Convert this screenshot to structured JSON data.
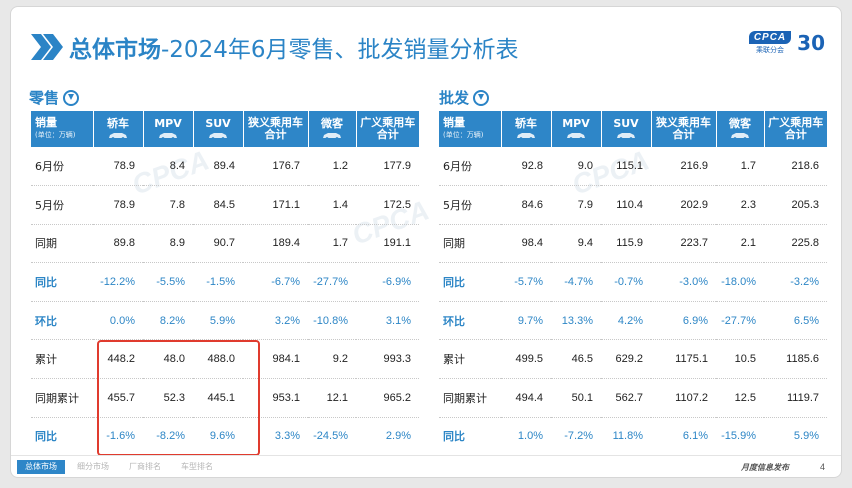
{
  "title": {
    "bold": "总体市场",
    "rest": "-2024年6月零售、批发销量分析表"
  },
  "logo": {
    "brand": "CPCA",
    "brand_sub": "乘联分会",
    "anniversary": "30"
  },
  "retail": {
    "section_label": "零售",
    "corner": {
      "main": "销量",
      "sub": "(单位：万辆)"
    },
    "columns": [
      "轿车",
      "MPV",
      "SUV",
      "狭义乘用车\n合计",
      "微客",
      "广义乘用车\n合计"
    ],
    "rows": [
      {
        "label": "6月份",
        "values": [
          "78.9",
          "8.4",
          "89.4",
          "176.7",
          "1.2",
          "177.9"
        ],
        "pct": false
      },
      {
        "label": "5月份",
        "values": [
          "78.9",
          "7.8",
          "84.5",
          "171.1",
          "1.4",
          "172.5"
        ],
        "pct": false
      },
      {
        "label": "同期",
        "values": [
          "89.8",
          "8.9",
          "90.7",
          "189.4",
          "1.7",
          "191.1"
        ],
        "pct": false
      },
      {
        "label": "同比",
        "values": [
          "-12.2%",
          "-5.5%",
          "-1.5%",
          "-6.7%",
          "-27.7%",
          "-6.9%"
        ],
        "pct": true
      },
      {
        "label": "环比",
        "values": [
          "0.0%",
          "8.2%",
          "5.9%",
          "3.2%",
          "-10.8%",
          "3.1%"
        ],
        "pct": true
      },
      {
        "label": "累计",
        "values": [
          "448.2",
          "48.0",
          "488.0",
          "984.1",
          "9.2",
          "993.3"
        ],
        "pct": false
      },
      {
        "label": "同期累计",
        "values": [
          "455.7",
          "52.3",
          "445.1",
          "953.1",
          "12.1",
          "965.2"
        ],
        "pct": false
      },
      {
        "label": "同比",
        "values": [
          "-1.6%",
          "-8.2%",
          "9.6%",
          "3.3%",
          "-24.5%",
          "2.9%"
        ],
        "pct": true
      }
    ]
  },
  "wholesale": {
    "section_label": "批发",
    "corner": {
      "main": "销量",
      "sub": "(单位：万辆)"
    },
    "columns": [
      "轿车",
      "MPV",
      "SUV",
      "狭义乘用车\n合计",
      "微客",
      "广义乘用车\n合计"
    ],
    "rows": [
      {
        "label": "6月份",
        "values": [
          "92.8",
          "9.0",
          "115.1",
          "216.9",
          "1.7",
          "218.6"
        ],
        "pct": false
      },
      {
        "label": "5月份",
        "values": [
          "84.6",
          "7.9",
          "110.4",
          "202.9",
          "2.3",
          "205.3"
        ],
        "pct": false
      },
      {
        "label": "同期",
        "values": [
          "98.4",
          "9.4",
          "115.9",
          "223.7",
          "2.1",
          "225.8"
        ],
        "pct": false
      },
      {
        "label": "同比",
        "values": [
          "-5.7%",
          "-4.7%",
          "-0.7%",
          "-3.0%",
          "-18.0%",
          "-3.2%"
        ],
        "pct": true
      },
      {
        "label": "环比",
        "values": [
          "9.7%",
          "13.3%",
          "4.2%",
          "6.9%",
          "-27.7%",
          "6.5%"
        ],
        "pct": true
      },
      {
        "label": "累计",
        "values": [
          "499.5",
          "46.5",
          "629.2",
          "1175.1",
          "10.5",
          "1185.6"
        ],
        "pct": false
      },
      {
        "label": "同期累计",
        "values": [
          "494.4",
          "50.1",
          "562.7",
          "1107.2",
          "12.5",
          "1119.7"
        ],
        "pct": false
      },
      {
        "label": "同比",
        "values": [
          "1.0%",
          "-7.2%",
          "11.8%",
          "6.1%",
          "-15.9%",
          "5.9%"
        ],
        "pct": true
      }
    ]
  },
  "footer": {
    "tabs": [
      "总体市场",
      "细分市场",
      "厂商排名",
      "车型排名"
    ],
    "note": "月度信息发布",
    "page": "4"
  },
  "colors": {
    "primary": "#2e86c8",
    "title": "#2b84c6",
    "highlight": "#e03b2e"
  }
}
